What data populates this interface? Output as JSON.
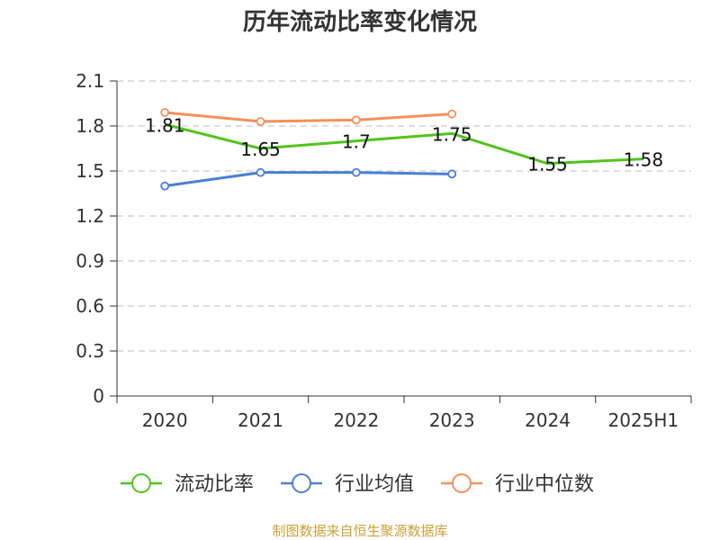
{
  "chart_data": {
    "type": "line",
    "title": "历年流动比率变化情况",
    "categories": [
      "2020",
      "2021",
      "2022",
      "2023",
      "2024",
      "2025H1"
    ],
    "ylim": [
      0,
      2.1
    ],
    "yticks": [
      "0",
      "0.3",
      "0.6",
      "0.9",
      "1.2",
      "1.5",
      "1.8",
      "2.1"
    ],
    "grid": true,
    "legend_position": "bottom",
    "series": [
      {
        "name": "流动比率",
        "color": "#52c41a",
        "values": [
          1.81,
          1.65,
          1.7,
          1.75,
          1.55,
          1.58
        ],
        "labels": [
          "1.81",
          "1.65",
          "1.7",
          "1.75",
          "1.55",
          "1.58"
        ],
        "show_points": false
      },
      {
        "name": "行业均值",
        "color": "#4a7fd6",
        "values": [
          1.4,
          1.49,
          1.49,
          1.48,
          null,
          null
        ],
        "show_points": true
      },
      {
        "name": "行业中位数",
        "color": "#f5905a",
        "values": [
          1.89,
          1.83,
          1.84,
          1.88,
          null,
          null
        ],
        "show_points": true
      }
    ],
    "source": "制图数据来自恒生聚源数据库"
  }
}
